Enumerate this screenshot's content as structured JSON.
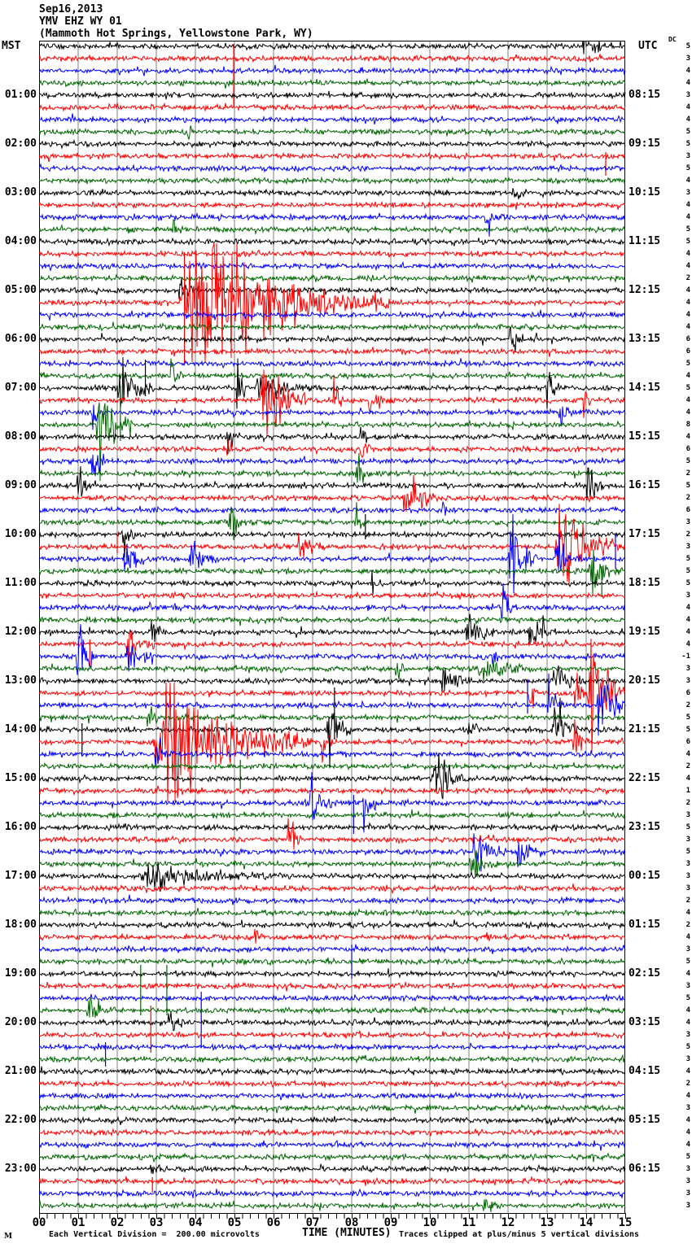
{
  "title": {
    "date": "Sep16,2013",
    "station": "YMV EHZ WY 01",
    "location": "(Mammoth Hot Springs, Yellowstone Park, WY)"
  },
  "axes": {
    "left_label": "MST",
    "right_label": "UTC",
    "dc_label": "DC",
    "x_title": "TIME (MINUTES)",
    "x_ticks": [
      "00",
      "01",
      "02",
      "03",
      "04",
      "05",
      "06",
      "07",
      "08",
      "09",
      "10",
      "11",
      "12",
      "13",
      "14",
      "15"
    ]
  },
  "footer": {
    "logo_mark": "M",
    "scale_note": "Each Vertical Division =  200.00 microvolts",
    "clip_note": "Traces clipped at plus/minus 5 vertical divisions"
  },
  "chart_data": {
    "type": "line",
    "subtype": "helicorder-seismogram",
    "minutes_per_line": 15,
    "rows_per_hour": 4,
    "row_count": 96,
    "trace_colors": [
      "#000000",
      "#ff0000",
      "#0000ff",
      "#006600"
    ],
    "grid_color": "#808080",
    "border_color": "#000000",
    "clip_divisions": 5,
    "base_noise_amp": 2.2,
    "left_hour_labels": [
      "01:00",
      "02:00",
      "03:00",
      "04:00",
      "05:00",
      "06:00",
      "07:00",
      "08:00",
      "09:00",
      "10:00",
      "11:00",
      "12:00",
      "13:00",
      "14:00",
      "15:00",
      "16:00",
      "17:00",
      "18:00",
      "19:00",
      "20:00",
      "21:00",
      "22:00",
      "23:00"
    ],
    "right_hour_labels": [
      "08:15",
      "09:15",
      "10:15",
      "11:15",
      "12:15",
      "13:15",
      "14:15",
      "15:15",
      "16:15",
      "17:15",
      "18:15",
      "19:15",
      "20:15",
      "21:15",
      "22:15",
      "23:15",
      "00:15",
      "01:15",
      "02:15",
      "03:15",
      "04:15",
      "05:15",
      "06:15"
    ],
    "dc_offsets": [
      5,
      3,
      4,
      4,
      3,
      4,
      4,
      5,
      5,
      3,
      5,
      4,
      3,
      4,
      4,
      5,
      5,
      4,
      4,
      2,
      4,
      4,
      4,
      4,
      6,
      6,
      5,
      4,
      5,
      4,
      4,
      8,
      4,
      6,
      5,
      2,
      5,
      2,
      6,
      3,
      2,
      3,
      5,
      5,
      5,
      3,
      4,
      4,
      4,
      4,
      -1,
      3,
      3,
      6,
      2,
      5,
      5,
      6,
      4,
      2,
      4,
      1,
      2,
      3,
      5,
      3,
      5,
      3,
      3,
      3,
      2,
      4,
      2,
      4,
      3,
      5,
      4,
      3,
      5,
      4,
      4,
      3,
      5,
      3,
      4,
      2,
      4,
      3,
      4,
      4,
      4,
      5,
      3,
      3,
      3,
      3
    ],
    "bursts": [
      {
        "r": 1,
        "m0": 13.9,
        "m1": 14.5,
        "a": 18
      },
      {
        "r": 8,
        "m0": 3.8,
        "m1": 4.05,
        "a": 8
      },
      {
        "r": 13,
        "m0": 12.1,
        "m1": 12.5,
        "a": 8
      },
      {
        "r": 15,
        "m0": 11.4,
        "m1": 12.0,
        "a": 10
      },
      {
        "r": 16,
        "m0": 3.4,
        "m1": 3.75,
        "a": 13
      },
      {
        "r": 21,
        "m0": 3.55,
        "m1": 4.15,
        "a": 9
      },
      {
        "r": 22,
        "m0": 3.55,
        "m1": 9.0,
        "a": 70
      },
      {
        "r": 25,
        "m0": 12.0,
        "m1": 12.9,
        "a": 14
      },
      {
        "r": 28,
        "m0": 3.35,
        "m1": 3.65,
        "a": 15
      },
      {
        "r": 29,
        "m0": 1.95,
        "m1": 3.0,
        "a": 26
      },
      {
        "r": 29,
        "m0": 5.05,
        "m1": 5.3,
        "a": 40
      },
      {
        "r": 29,
        "m0": 5.5,
        "m1": 7.0,
        "a": 13
      },
      {
        "r": 29,
        "m0": 12.95,
        "m1": 13.35,
        "a": 26
      },
      {
        "r": 30,
        "m0": 5.6,
        "m1": 7.0,
        "a": 36
      },
      {
        "r": 30,
        "m0": 7.5,
        "m1": 7.8,
        "a": 26
      },
      {
        "r": 30,
        "m0": 8.4,
        "m1": 9.1,
        "a": 16
      },
      {
        "r": 30,
        "m0": 13.9,
        "m1": 14.15,
        "a": 20
      },
      {
        "r": 31,
        "m0": 1.35,
        "m1": 1.65,
        "a": 12
      },
      {
        "r": 31,
        "m0": 13.3,
        "m1": 13.65,
        "a": 24
      },
      {
        "r": 32,
        "m0": 1.45,
        "m1": 2.45,
        "a": 40
      },
      {
        "r": 33,
        "m0": 4.8,
        "m1": 5.05,
        "a": 22
      },
      {
        "r": 33,
        "m0": 8.2,
        "m1": 8.5,
        "a": 15
      },
      {
        "r": 34,
        "m0": 4.8,
        "m1": 5.05,
        "a": 22
      },
      {
        "r": 34,
        "m0": 8.2,
        "m1": 8.6,
        "a": 15
      },
      {
        "r": 35,
        "m0": 1.3,
        "m1": 1.8,
        "a": 20
      },
      {
        "r": 36,
        "m0": 8.1,
        "m1": 8.5,
        "a": 26
      },
      {
        "r": 37,
        "m0": 0.95,
        "m1": 1.5,
        "a": 16
      },
      {
        "r": 37,
        "m0": 14.0,
        "m1": 14.5,
        "a": 28
      },
      {
        "r": 38,
        "m0": 9.3,
        "m1": 10.2,
        "a": 28
      },
      {
        "r": 39,
        "m0": 10.3,
        "m1": 10.55,
        "a": 13
      },
      {
        "r": 40,
        "m0": 4.85,
        "m1": 5.35,
        "a": 20
      },
      {
        "r": 40,
        "m0": 8.05,
        "m1": 8.35,
        "a": 13
      },
      {
        "r": 41,
        "m0": 2.1,
        "m1": 2.6,
        "a": 16
      },
      {
        "r": 42,
        "m0": 6.6,
        "m1": 7.15,
        "a": 18
      },
      {
        "r": 42,
        "m0": 13.2,
        "m1": 15.0,
        "a": 40
      },
      {
        "r": 43,
        "m0": 2.15,
        "m1": 2.7,
        "a": 45
      },
      {
        "r": 43,
        "m0": 3.8,
        "m1": 4.6,
        "a": 18
      },
      {
        "r": 43,
        "m0": 12.0,
        "m1": 12.8,
        "a": 45
      },
      {
        "r": 43,
        "m0": 13.2,
        "m1": 13.95,
        "a": 26
      },
      {
        "r": 44,
        "m0": 14.05,
        "m1": 14.95,
        "a": 24
      },
      {
        "r": 45,
        "m0": 8.5,
        "m1": 8.8,
        "a": 13
      },
      {
        "r": 47,
        "m0": 11.8,
        "m1": 12.3,
        "a": 24
      },
      {
        "r": 49,
        "m0": 2.8,
        "m1": 3.25,
        "a": 16
      },
      {
        "r": 49,
        "m0": 10.9,
        "m1": 11.65,
        "a": 24
      },
      {
        "r": 49,
        "m0": 12.5,
        "m1": 13.25,
        "a": 20
      },
      {
        "r": 50,
        "m0": 2.2,
        "m1": 2.95,
        "a": 18
      },
      {
        "r": 51,
        "m0": 0.95,
        "m1": 1.4,
        "a": 55
      },
      {
        "r": 51,
        "m0": 2.2,
        "m1": 2.95,
        "a": 22
      },
      {
        "r": 51,
        "m0": 11.55,
        "m1": 11.9,
        "a": 16
      },
      {
        "r": 52,
        "m0": 9.1,
        "m1": 9.4,
        "a": 15
      },
      {
        "r": 52,
        "m0": 11.2,
        "m1": 12.6,
        "a": 13
      },
      {
        "r": 53,
        "m0": 10.25,
        "m1": 10.85,
        "a": 28
      },
      {
        "r": 53,
        "m0": 13.1,
        "m1": 13.9,
        "a": 18
      },
      {
        "r": 54,
        "m0": 12.5,
        "m1": 12.8,
        "a": 28
      },
      {
        "r": 54,
        "m0": 13.7,
        "m1": 14.02,
        "a": 28
      },
      {
        "r": 54,
        "m0": 14.02,
        "m1": 15.0,
        "a": 68
      },
      {
        "r": 55,
        "m0": 13.0,
        "m1": 13.5,
        "a": 28
      },
      {
        "r": 55,
        "m0": 14.25,
        "m1": 15.0,
        "a": 40
      },
      {
        "r": 56,
        "m0": 2.75,
        "m1": 3.15,
        "a": 13
      },
      {
        "r": 57,
        "m0": 7.35,
        "m1": 8.0,
        "a": 32
      },
      {
        "r": 57,
        "m0": 10.95,
        "m1": 11.35,
        "a": 16
      },
      {
        "r": 57,
        "m0": 13.1,
        "m1": 13.9,
        "a": 22
      },
      {
        "r": 58,
        "m0": 2.9,
        "m1": 7.0,
        "a": 68
      },
      {
        "r": 58,
        "m0": 7.2,
        "m1": 7.55,
        "a": 26
      },
      {
        "r": 58,
        "m0": 13.65,
        "m1": 14.05,
        "a": 22
      },
      {
        "r": 59,
        "m0": 2.95,
        "m1": 3.35,
        "a": 14
      },
      {
        "r": 61,
        "m0": 10.05,
        "m1": 11.0,
        "a": 28
      },
      {
        "r": 63,
        "m0": 6.9,
        "m1": 7.55,
        "a": 22
      },
      {
        "r": 63,
        "m0": 8.25,
        "m1": 8.7,
        "a": 22
      },
      {
        "r": 66,
        "m0": 6.35,
        "m1": 6.7,
        "a": 42
      },
      {
        "r": 67,
        "m0": 11.05,
        "m1": 11.95,
        "a": 18
      },
      {
        "r": 67,
        "m0": 12.2,
        "m1": 12.95,
        "a": 18
      },
      {
        "r": 68,
        "m0": 11.0,
        "m1": 11.75,
        "a": 20
      },
      {
        "r": 69,
        "m0": 2.5,
        "m1": 6.4,
        "a": 11
      },
      {
        "r": 69,
        "m0": 3.0,
        "m1": 3.4,
        "a": 18
      },
      {
        "r": 74,
        "m0": 5.5,
        "m1": 5.75,
        "a": 16
      },
      {
        "r": 80,
        "m0": 1.2,
        "m1": 1.95,
        "a": 18
      },
      {
        "r": 81,
        "m0": 3.25,
        "m1": 3.8,
        "a": 15
      },
      {
        "r": 93,
        "m0": 2.8,
        "m1": 3.25,
        "a": 13
      },
      {
        "r": 96,
        "m0": 11.35,
        "m1": 11.75,
        "a": 9
      }
    ],
    "spikes": [
      {
        "r": 2,
        "m": 4.98,
        "u": 18,
        "d": 58
      },
      {
        "r": 10,
        "m": 14.5,
        "u": 5,
        "d": 24
      },
      {
        "r": 22,
        "m": 3.72,
        "u": 62,
        "d": 75
      },
      {
        "r": 29,
        "m": 2.72,
        "u": 35,
        "d": 10
      },
      {
        "r": 32,
        "m": 2.08,
        "u": 48,
        "d": 20
      },
      {
        "r": 41,
        "m": 8.35,
        "u": 25,
        "d": 6
      },
      {
        "r": 42,
        "m": 2.0,
        "u": 18,
        "d": 8
      },
      {
        "r": 43,
        "m": 14.75,
        "u": 30,
        "d": 12
      },
      {
        "r": 44,
        "m": 14.4,
        "u": 6,
        "d": 32
      },
      {
        "r": 50,
        "m": 1.3,
        "u": 6,
        "d": 28
      },
      {
        "r": 55,
        "m": 12.5,
        "u": 32,
        "d": 10
      },
      {
        "r": 57,
        "m": 1.1,
        "u": 8,
        "d": 33
      },
      {
        "r": 57,
        "m": 7.56,
        "u": 52,
        "d": 12
      },
      {
        "r": 60,
        "m": 5.15,
        "u": 8,
        "d": 28
      },
      {
        "r": 63,
        "m": 8.05,
        "u": 10,
        "d": 38
      },
      {
        "r": 75,
        "m": 8.0,
        "u": 6,
        "d": 36
      },
      {
        "r": 79,
        "m": 4.15,
        "u": 8,
        "d": 60
      },
      {
        "r": 80,
        "m": 2.6,
        "u": 56,
        "d": 6
      },
      {
        "r": 80,
        "m": 3.27,
        "u": 56,
        "d": 6
      },
      {
        "r": 82,
        "m": 2.86,
        "u": 36,
        "d": 22
      },
      {
        "r": 83,
        "m": 1.7,
        "u": 6,
        "d": 24
      },
      {
        "r": 94,
        "m": 2.9,
        "u": 5,
        "d": 14
      }
    ]
  }
}
